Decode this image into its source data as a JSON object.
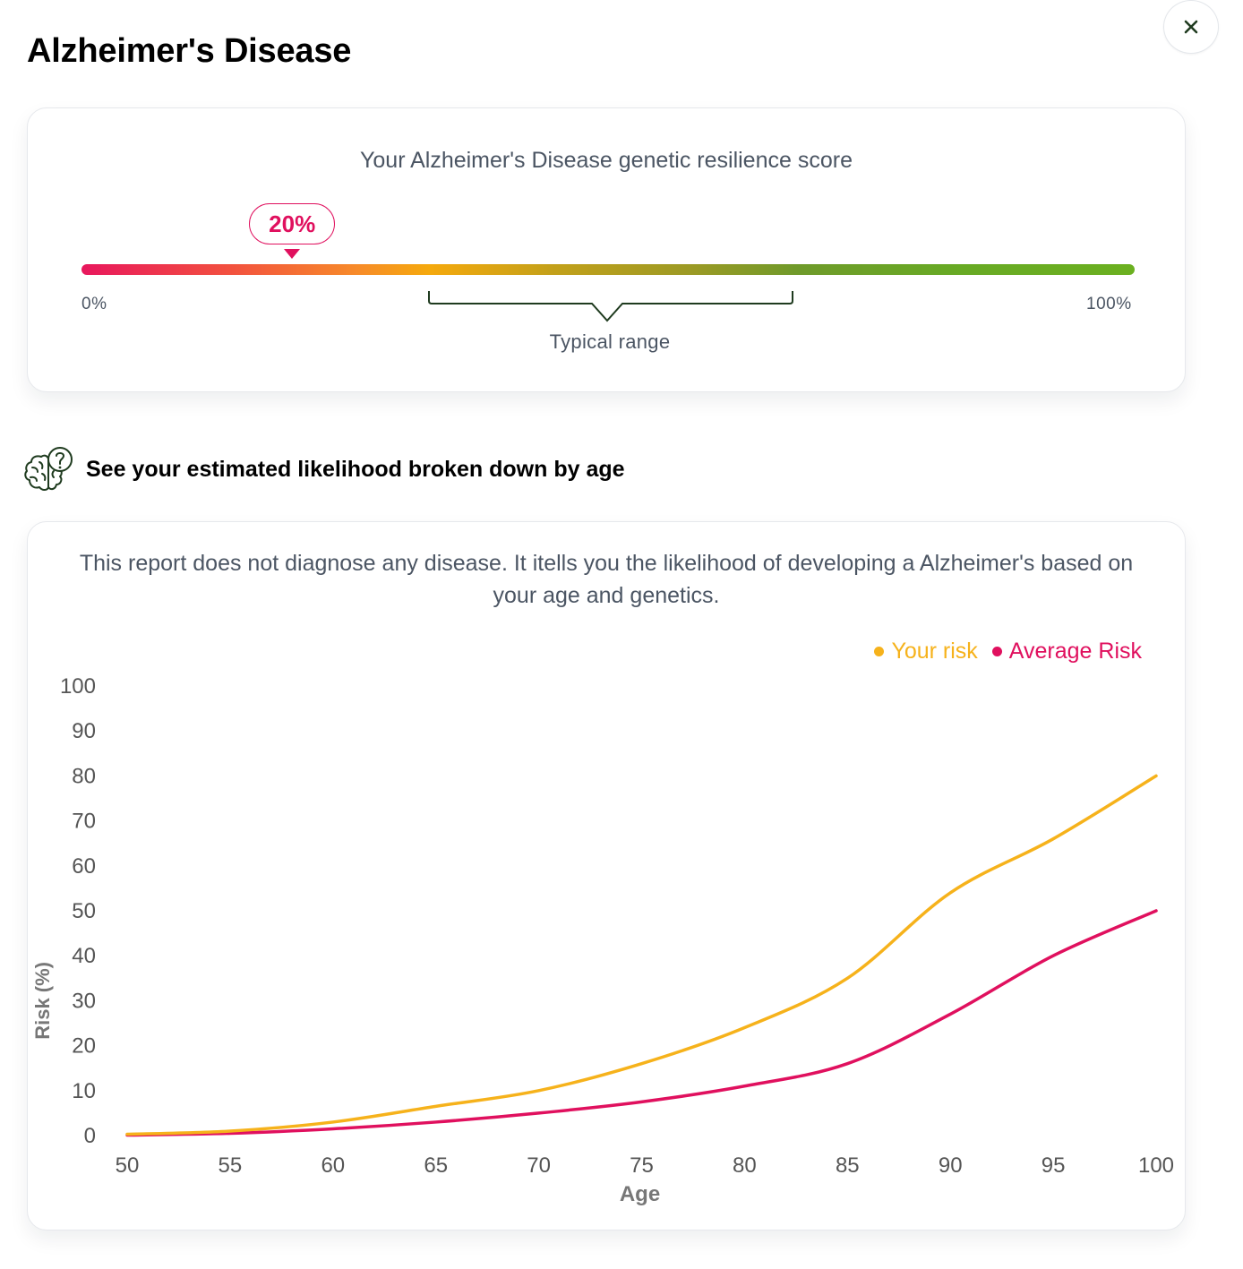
{
  "header": {
    "title": "Alzheimer's Disease"
  },
  "colors": {
    "accent": "#e0105e",
    "your_risk": "#f6b21b",
    "average_risk": "#e0105e",
    "bracket": "#1f3b1f"
  },
  "score": {
    "heading": "Your Alzheimer's Disease genetic resilience score",
    "value": 20,
    "value_label": "20%",
    "min_label": "0%",
    "max_label": "100%",
    "typical_range_label": "Typical range"
  },
  "section": {
    "title": "See your estimated likelihood broken down by age",
    "icon": "brain-question-icon"
  },
  "disclaimer": "This report does not diagnose any disease. It itells you the likelihood of developing a Alzheimer's based on your age and genetics.",
  "chart_data": {
    "type": "line",
    "xlabel": "Age",
    "ylabel": "Risk (%)",
    "xlim": [
      50,
      100
    ],
    "ylim": [
      0,
      100
    ],
    "x_ticks": [
      50,
      55,
      60,
      65,
      70,
      75,
      80,
      85,
      90,
      95,
      100
    ],
    "y_ticks": [
      0,
      10,
      20,
      30,
      40,
      50,
      60,
      70,
      80,
      90,
      100
    ],
    "legend_position": "top-right",
    "x": [
      50,
      55,
      60,
      65,
      70,
      75,
      80,
      85,
      90,
      95,
      100
    ],
    "series": [
      {
        "name": "Your risk",
        "color": "#f6b21b",
        "values": [
          0.3,
          1,
          3,
          6.5,
          10,
          16,
          24,
          35,
          54,
          66,
          80
        ]
      },
      {
        "name": "Average Risk",
        "color": "#e0105e",
        "values": [
          0.1,
          0.5,
          1.5,
          3,
          5,
          7.5,
          11,
          16,
          27,
          40,
          50
        ]
      }
    ]
  }
}
